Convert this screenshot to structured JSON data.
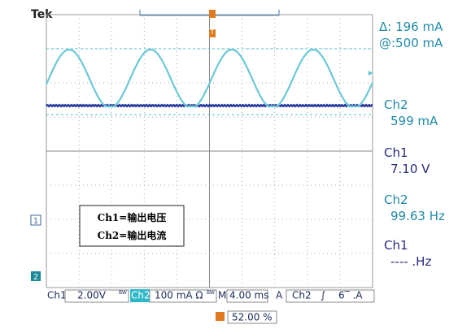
{
  "header": {
    "brand": "Tek"
  },
  "readouts": [
    "Δ: 196 mA",
    "@:500 mA",
    "Ch2",
    "599 mA",
    "Ch1",
    "7.10 V",
    "Ch2",
    "99.63 Hz",
    "Ch1",
    "----  .Hz"
  ],
  "legend": [
    "Ch1=输出电压",
    "Ch2=输出电流"
  ],
  "markers": {
    "ch1": "1",
    "ch2": "2",
    "trigger": "T"
  },
  "status_bar": {
    "ch1_label": "Ch1",
    "ch1_scale": "2.00V",
    "ch1_bw": "BW",
    "ch2_label": "Ch2",
    "ch2_scale": "100 mA Ω",
    "ch2_bw": "BW",
    "m_label": "M",
    "timebase": "4.00 ms",
    "a_label": "A",
    "trigger_source": "Ch2",
    "trigger_slope": "∫",
    "trigger_level": "6‾ .A"
  },
  "footer": {
    "trigger_position": "52.00 %"
  }
}
